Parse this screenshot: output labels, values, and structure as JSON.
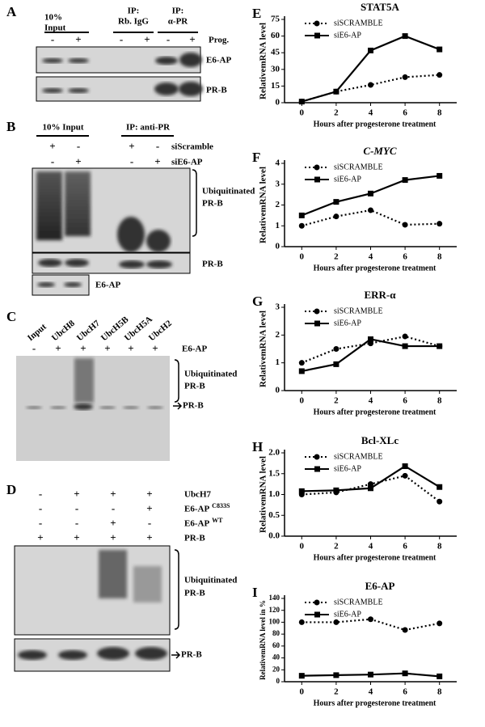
{
  "panels": {
    "A": {
      "letter": "A",
      "headers": [
        [
          "10%",
          "Input"
        ],
        [
          "IP:",
          "Rb. IgG"
        ],
        [
          "IP:",
          "α-PR"
        ]
      ],
      "row_label": "Prog.",
      "signs": [
        "-",
        "+",
        "-",
        "+",
        "-",
        "+"
      ],
      "bands": [
        "E6-AP",
        "PR-B"
      ]
    },
    "B": {
      "letter": "B",
      "headers": [
        "10% Input",
        "IP: anti-PR"
      ],
      "rows": [
        {
          "label": "siScramble",
          "signs": [
            "+",
            "-",
            "+",
            "-"
          ]
        },
        {
          "label": "siE6-AP",
          "signs": [
            "-",
            "+",
            "-",
            "+"
          ]
        }
      ],
      "bands": [
        [
          "Ubiquitinated",
          "PR-B"
        ],
        "PR-B",
        "E6-AP"
      ]
    },
    "C": {
      "letter": "C",
      "lanes": [
        "Input",
        "UbcH8",
        "UbcH7",
        "UbcH5B",
        "UbcH5A",
        "UbcH2"
      ],
      "row_label": "E6-AP",
      "signs": [
        "-",
        "+",
        "+",
        "+",
        "+",
        "+"
      ],
      "bands": [
        [
          "Ubiquitinated",
          "PR-B"
        ],
        "PR-B"
      ]
    },
    "D": {
      "letter": "D",
      "rows": [
        {
          "label": "UbcH7",
          "signs": [
            "-",
            "+",
            "+",
            "+"
          ]
        },
        {
          "label": "E6-AP",
          "sup": "C833S",
          "signs": [
            "-",
            "-",
            "-",
            "+"
          ]
        },
        {
          "label": "E6-AP",
          "sup": "WT",
          "signs": [
            "-",
            "-",
            "+",
            "-"
          ]
        },
        {
          "label": "PR-B",
          "signs": [
            "+",
            "+",
            "+",
            "+"
          ]
        }
      ],
      "bands": [
        [
          "Ubiquitinated",
          "PR-B"
        ],
        "PR-B"
      ]
    }
  },
  "chart_data": [
    {
      "type": "line",
      "letter": "E",
      "title": "STAT5A",
      "x_label": "Hours after progesterone treatment",
      "y_label": "RelativemRNA level",
      "x": [
        0,
        2,
        4,
        6,
        8
      ],
      "xlim": [
        -1,
        9
      ],
      "xticks": [
        0,
        2,
        4,
        6,
        8
      ],
      "ylim": [
        0,
        75
      ],
      "yticks": [
        0,
        15,
        30,
        45,
        60,
        75
      ],
      "series": [
        {
          "name": "siSCRAMBLE",
          "color": "#000000",
          "style": "dotted",
          "marker": "circle",
          "values": [
            1,
            10,
            16,
            23,
            25
          ]
        },
        {
          "name": "siE6-AP",
          "color": "#000000",
          "style": "solid",
          "marker": "square",
          "values": [
            1,
            10,
            47,
            60,
            48
          ]
        }
      ]
    },
    {
      "type": "line",
      "letter": "F",
      "title": "C-MYC",
      "title_italic": true,
      "x_label": "Hours after progesterone treatment",
      "y_label": "RelativemRNA level",
      "x": [
        0,
        2,
        4,
        6,
        8
      ],
      "xlim": [
        -1,
        9
      ],
      "xticks": [
        0,
        2,
        4,
        6,
        8
      ],
      "ylim": [
        0,
        4
      ],
      "yticks": [
        0,
        1,
        2,
        3,
        4
      ],
      "series": [
        {
          "name": "siSCRAMBLE",
          "color": "#000000",
          "style": "dotted",
          "marker": "circle",
          "values": [
            1,
            1.45,
            1.75,
            1.05,
            1.1
          ]
        },
        {
          "name": "siE6-AP",
          "color": "#000000",
          "style": "solid",
          "marker": "square",
          "values": [
            1.5,
            2.15,
            2.55,
            3.2,
            3.4
          ]
        }
      ]
    },
    {
      "type": "line",
      "letter": "G",
      "title": "ERR-α",
      "x_label": "Hours after progesterone treatment",
      "y_label": "RelativemRNA level",
      "x": [
        0,
        2,
        4,
        6,
        8
      ],
      "xlim": [
        -1,
        9
      ],
      "xticks": [
        0,
        2,
        4,
        6,
        8
      ],
      "ylim": [
        0,
        3
      ],
      "yticks": [
        0,
        1,
        2,
        3
      ],
      "series": [
        {
          "name": "siSCRAMBLE",
          "color": "#000000",
          "style": "dotted",
          "marker": "circle",
          "values": [
            1,
            1.5,
            1.7,
            1.95,
            1.6
          ]
        },
        {
          "name": "siE6-AP",
          "color": "#000000",
          "style": "solid",
          "marker": "square",
          "values": [
            0.7,
            0.95,
            1.85,
            1.6,
            1.6
          ]
        }
      ]
    },
    {
      "type": "line",
      "letter": "H",
      "title": "Bcl-XLc",
      "x_label": "Hours after progesterone treatment",
      "y_label": "RelativemRNA level",
      "x": [
        0,
        2,
        4,
        6,
        8
      ],
      "xlim": [
        -1,
        9
      ],
      "xticks": [
        0,
        2,
        4,
        6,
        8
      ],
      "ylim": [
        0,
        2
      ],
      "yticks": [
        {
          "value": 0,
          "label": "0.0"
        },
        0.5,
        {
          "value": 1,
          "label": "1.0"
        },
        1.5,
        {
          "value": 2,
          "label": "2.0"
        }
      ],
      "series": [
        {
          "name": "siSCRAMBLE",
          "color": "#000000",
          "style": "dotted",
          "marker": "circle",
          "values": [
            1.0,
            1.05,
            1.25,
            1.45,
            0.83
          ]
        },
        {
          "name": "siE6-AP",
          "color": "#000000",
          "style": "solid",
          "marker": "square",
          "values": [
            1.08,
            1.1,
            1.15,
            1.68,
            1.18
          ]
        }
      ]
    },
    {
      "type": "line",
      "letter": "I",
      "title": "E6-AP",
      "x_label": "Hours after progesterone treatment",
      "y_label": "RelativemRNA level in %",
      "x": [
        0,
        2,
        4,
        6,
        8
      ],
      "xlim": [
        -1,
        9
      ],
      "xticks": [
        0,
        2,
        4,
        6,
        8
      ],
      "ylim": [
        0,
        140
      ],
      "yticks": [
        0,
        20,
        40,
        60,
        80,
        100,
        120,
        140
      ],
      "series": [
        {
          "name": "siSCRAMBLE",
          "color": "#000000",
          "style": "dotted",
          "marker": "circle",
          "values": [
            100,
            100,
            105,
            87,
            98
          ]
        },
        {
          "name": "siE6-AP",
          "color": "#000000",
          "style": "solid",
          "marker": "square",
          "values": [
            10,
            11,
            12,
            14,
            9
          ]
        }
      ]
    }
  ]
}
